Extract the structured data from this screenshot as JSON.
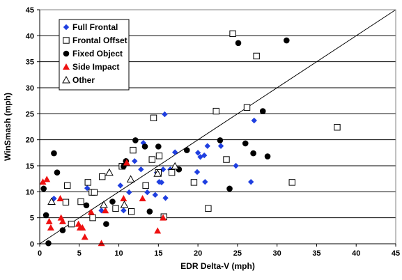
{
  "chart_data": {
    "type": "scatter",
    "xlabel": "EDR Delta-V (mph)",
    "ylabel": "WinSmash (mph)",
    "xlim": [
      0,
      45
    ],
    "ylim": [
      0,
      45
    ],
    "xticks": [
      "0",
      "5",
      "10",
      "15",
      "20",
      "25",
      "30",
      "35",
      "40",
      "45"
    ],
    "yticks": [
      "0",
      "5",
      "10",
      "15",
      "20",
      "25",
      "30",
      "35",
      "40",
      "45"
    ],
    "grid": "horizontal",
    "legend_position": "top-left",
    "reference_line": "y = x",
    "series": [
      {
        "name": "Full Frontal",
        "marker": "diamond",
        "color": "#1f3fe0",
        "points": [
          [
            1.8,
            8.7
          ],
          [
            6.0,
            10.7
          ],
          [
            7.8,
            6.4
          ],
          [
            10.2,
            11.2
          ],
          [
            10.6,
            6.4
          ],
          [
            11.3,
            9.9
          ],
          [
            12.0,
            15.9
          ],
          [
            12.8,
            14.3
          ],
          [
            13.1,
            19.4
          ],
          [
            13.6,
            9.9
          ],
          [
            14.6,
            9.4
          ],
          [
            14.8,
            13.7
          ],
          [
            15.1,
            11.9
          ],
          [
            15.4,
            11.8
          ],
          [
            15.6,
            14.3
          ],
          [
            15.8,
            24.9
          ],
          [
            15.9,
            8.8
          ],
          [
            16.5,
            14.3
          ],
          [
            17.1,
            17.6
          ],
          [
            19.9,
            13.8
          ],
          [
            20.0,
            17.5
          ],
          [
            20.3,
            16.7
          ],
          [
            20.8,
            17.0
          ],
          [
            20.9,
            11.9
          ],
          [
            21.2,
            18.8
          ],
          [
            22.9,
            18.8
          ],
          [
            24.8,
            15.0
          ],
          [
            26.7,
            11.9
          ],
          [
            27.1,
            23.7
          ]
        ]
      },
      {
        "name": "Frontal Offset",
        "marker": "square-open",
        "color": "#000000",
        "points": [
          [
            3.5,
            11.2
          ],
          [
            3.3,
            8.0
          ],
          [
            4.0,
            3.8
          ],
          [
            5.2,
            8.1
          ],
          [
            6.1,
            11.8
          ],
          [
            6.6,
            9.9
          ],
          [
            6.9,
            9.9
          ],
          [
            6.7,
            5.0
          ],
          [
            7.9,
            12.9
          ],
          [
            9.6,
            6.8
          ],
          [
            10.4,
            14.9
          ],
          [
            11.6,
            6.2
          ],
          [
            11.8,
            18.0
          ],
          [
            13.4,
            11.2
          ],
          [
            14.2,
            16.2
          ],
          [
            14.4,
            24.2
          ],
          [
            15.0,
            13.7
          ],
          [
            15.1,
            16.9
          ],
          [
            15.7,
            5.2
          ],
          [
            16.7,
            13.7
          ],
          [
            19.5,
            11.8
          ],
          [
            21.3,
            6.8
          ],
          [
            22.3,
            25.5
          ],
          [
            23.6,
            16.2
          ],
          [
            24.4,
            40.4
          ],
          [
            26.2,
            26.2
          ],
          [
            27.4,
            36.1
          ],
          [
            31.9,
            11.8
          ],
          [
            37.6,
            22.4
          ]
        ]
      },
      {
        "name": "Fixed Object",
        "marker": "circle",
        "color": "#000000",
        "points": [
          [
            0.5,
            10.6
          ],
          [
            0.8,
            5.5
          ],
          [
            1.1,
            0.1
          ],
          [
            1.8,
            17.4
          ],
          [
            2.2,
            13.7
          ],
          [
            2.9,
            2.6
          ],
          [
            5.9,
            7.4
          ],
          [
            8.4,
            3.8
          ],
          [
            9.2,
            8.1
          ],
          [
            10.6,
            14.9
          ],
          [
            10.9,
            15.9
          ],
          [
            12.1,
            19.9
          ],
          [
            13.3,
            18.7
          ],
          [
            13.9,
            6.2
          ],
          [
            15.0,
            18.7
          ],
          [
            17.6,
            14.3
          ],
          [
            18.6,
            18.0
          ],
          [
            22.8,
            19.9
          ],
          [
            24.0,
            10.6
          ],
          [
            25.1,
            38.6
          ],
          [
            26.0,
            19.3
          ],
          [
            27.0,
            17.4
          ],
          [
            28.2,
            25.5
          ],
          [
            28.8,
            16.8
          ],
          [
            31.2,
            39.1
          ]
        ]
      },
      {
        "name": "Side Impact",
        "marker": "triangle",
        "color": "#ee1111",
        "points": [
          [
            0.4,
            11.9
          ],
          [
            0.9,
            12.4
          ],
          [
            1.2,
            4.3
          ],
          [
            1.4,
            3.1
          ],
          [
            2.6,
            8.7
          ],
          [
            2.7,
            5.0
          ],
          [
            2.9,
            4.3
          ],
          [
            4.9,
            3.8
          ],
          [
            5.1,
            3.1
          ],
          [
            5.4,
            3.1
          ],
          [
            5.7,
            1.3
          ],
          [
            6.5,
            6.1
          ],
          [
            7.8,
            0.1
          ],
          [
            8.3,
            6.4
          ],
          [
            10.6,
            8.7
          ],
          [
            11.0,
            15.6
          ],
          [
            13.0,
            8.7
          ],
          [
            14.9,
            2.5
          ],
          [
            15.6,
            5.0
          ]
        ]
      },
      {
        "name": "Other",
        "marker": "triangle-open",
        "color": "#000000",
        "points": [
          [
            1.5,
            8.1
          ],
          [
            8.1,
            7.5
          ],
          [
            8.8,
            13.7
          ],
          [
            10.7,
            7.5
          ],
          [
            11.5,
            12.4
          ],
          [
            14.9,
            13.5
          ],
          [
            17.1,
            14.9
          ]
        ]
      }
    ]
  }
}
